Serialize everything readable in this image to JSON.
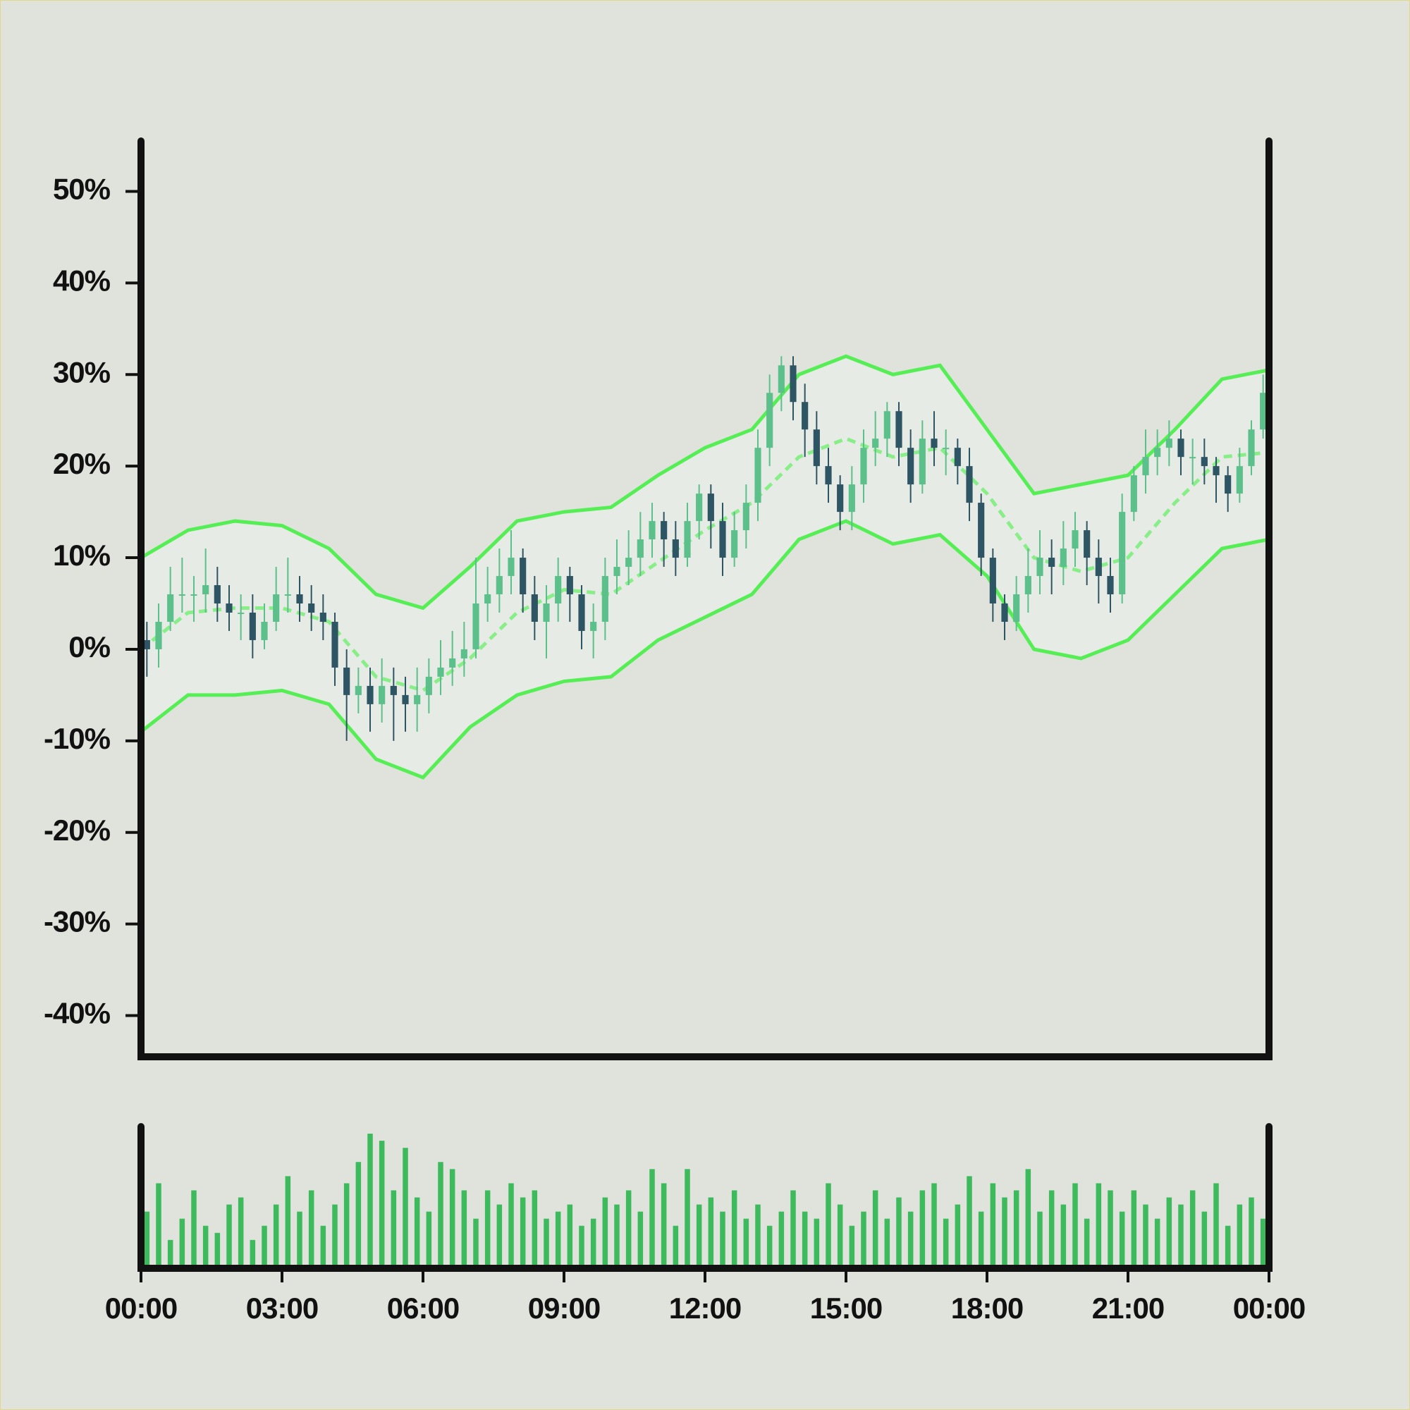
{
  "chart_data": [
    {
      "type": "candlestick",
      "x": [
        0.125,
        0.375,
        0.625,
        0.875,
        1.125,
        1.375,
        1.625,
        1.875,
        2.125,
        2.375,
        2.625,
        2.875,
        3.125,
        3.375,
        3.625,
        3.875,
        4.125,
        4.375,
        4.625,
        4.875,
        5.125,
        5.375,
        5.625,
        5.875,
        6.125,
        6.375,
        6.625,
        6.875,
        7.125,
        7.375,
        7.625,
        7.875,
        8.125,
        8.375,
        8.625,
        8.875,
        9.125,
        9.375,
        9.625,
        9.875,
        10.125,
        10.375,
        10.625,
        10.875,
        11.125,
        11.375,
        11.625,
        11.875,
        12.125,
        12.375,
        12.625,
        12.875,
        13.125,
        13.375,
        13.625,
        13.875,
        14.125,
        14.375,
        14.625,
        14.875,
        15.125,
        15.375,
        15.625,
        15.875,
        16.125,
        16.375,
        16.625,
        16.875,
        17.125,
        17.375,
        17.625,
        17.875,
        18.125,
        18.375,
        18.625,
        18.875,
        19.125,
        19.375,
        19.625,
        19.875,
        20.125,
        20.375,
        20.625,
        20.875,
        21.125,
        21.375,
        21.625,
        21.875,
        22.125,
        22.375,
        22.625,
        22.875,
        23.125,
        23.375,
        23.625,
        23.875
      ],
      "open": [
        1,
        0,
        3,
        6,
        6,
        6,
        7,
        5,
        4,
        4,
        1,
        3,
        6,
        6,
        5,
        4,
        3,
        -2,
        -5,
        -4,
        -6,
        -4,
        -5,
        -6,
        -5,
        -3,
        -2,
        -1,
        0,
        5,
        6,
        8,
        10,
        6,
        3,
        5,
        8,
        6,
        2,
        3,
        8,
        9,
        10,
        12,
        14,
        12,
        10,
        14,
        17,
        14,
        10,
        13,
        16,
        22,
        28,
        31,
        27,
        24,
        20,
        18,
        15,
        18,
        22,
        23,
        26,
        22,
        18,
        23,
        22,
        22,
        20,
        16,
        10,
        5,
        3,
        6,
        8,
        10,
        9,
        11,
        13,
        10,
        8,
        6,
        15,
        19,
        21,
        22,
        23,
        21,
        21,
        20,
        19,
        17,
        20,
        24
      ],
      "high": [
        3,
        5,
        9,
        10,
        8,
        11,
        9,
        7,
        6,
        6,
        5,
        9,
        10,
        8,
        7,
        6,
        4,
        0,
        -2,
        -2,
        -1,
        -2,
        -3,
        -2,
        -1,
        1,
        2,
        3,
        10,
        9,
        11,
        13,
        11,
        8,
        7,
        10,
        9,
        7,
        5,
        10,
        12,
        13,
        15,
        16,
        15,
        14,
        16,
        18,
        18,
        16,
        15,
        18,
        24,
        30,
        32,
        32,
        29,
        26,
        22,
        19,
        20,
        24,
        26,
        27,
        27,
        24,
        25,
        26,
        24,
        23,
        22,
        17,
        11,
        6,
        8,
        11,
        13,
        12,
        14,
        15,
        14,
        12,
        10,
        17,
        20,
        24,
        24,
        25,
        24,
        23,
        23,
        21,
        20,
        22,
        25,
        30
      ],
      "low": [
        -3,
        -2,
        2,
        4,
        3,
        4,
        3,
        2,
        1,
        -1,
        0,
        2,
        4,
        3,
        2,
        1,
        -4,
        -10,
        -7,
        -9,
        -8,
        -10,
        -9,
        -9,
        -7,
        -5,
        -4,
        -3,
        -1,
        3,
        4,
        6,
        4,
        1,
        -1,
        3,
        3,
        0,
        -1,
        1,
        6,
        7,
        8,
        10,
        9,
        8,
        9,
        12,
        11,
        8,
        9,
        11,
        14,
        20,
        26,
        25,
        21,
        18,
        16,
        13,
        13,
        16,
        20,
        21,
        20,
        16,
        17,
        20,
        19,
        18,
        14,
        8,
        3,
        1,
        2,
        4,
        6,
        6,
        7,
        9,
        7,
        5,
        4,
        5,
        14,
        17,
        19,
        20,
        19,
        18,
        18,
        16,
        15,
        16,
        19,
        23
      ],
      "close": [
        0,
        3,
        6,
        6,
        6,
        7,
        5,
        4,
        4,
        1,
        3,
        6,
        6,
        5,
        4,
        3,
        -2,
        -5,
        -4,
        -6,
        -4,
        -5,
        -6,
        -5,
        -3,
        -2,
        -1,
        0,
        5,
        6,
        8,
        10,
        6,
        3,
        5,
        8,
        6,
        2,
        3,
        8,
        9,
        10,
        12,
        14,
        12,
        10,
        14,
        17,
        14,
        10,
        13,
        16,
        22,
        28,
        31,
        27,
        24,
        20,
        18,
        15,
        18,
        22,
        23,
        26,
        22,
        18,
        23,
        22,
        22,
        20,
        16,
        10,
        5,
        3,
        6,
        8,
        10,
        9,
        11,
        13,
        10,
        8,
        6,
        15,
        19,
        21,
        22,
        23,
        21,
        21,
        20,
        19,
        17,
        20,
        24,
        28
      ],
      "up_color": "#5cc08a",
      "down_color": "#2e5563",
      "xlim": [
        0,
        24
      ],
      "ylim": [
        -44.5,
        55.5
      ],
      "yticks": [
        {
          "value": 50,
          "label": "50%"
        },
        {
          "value": 40,
          "label": "40%"
        },
        {
          "value": 30,
          "label": "30%"
        },
        {
          "value": 20,
          "label": "20%"
        },
        {
          "value": 10,
          "label": "10%"
        },
        {
          "value": 0,
          "label": "0%"
        },
        {
          "value": -10,
          "label": "-10%"
        },
        {
          "value": -20,
          "label": "-20%"
        },
        {
          "value": -30,
          "label": "-30%"
        },
        {
          "value": -40,
          "label": "-40%"
        }
      ],
      "bands": {
        "x": [
          0,
          1,
          2,
          3,
          4,
          5,
          6,
          7,
          8,
          9,
          10,
          11,
          12,
          13,
          14,
          15,
          16,
          17,
          18,
          19,
          20,
          21,
          22,
          23,
          24
        ],
        "fill": "#e7ebe5",
        "series": [
          {
            "color": "#55ee55",
            "values": [
              10,
              13,
              14,
              13.5,
              11,
              6,
              4.5,
              9,
              14,
              15,
              15.5,
              19,
              22,
              24,
              30,
              32,
              30,
              31,
              24,
              17,
              18,
              19,
              24,
              29.5,
              30.5
            ]
          },
          {
            "color": "#88ee88",
            "dash": true,
            "values": [
              0,
              4,
              4.5,
              4.5,
              3,
              -3,
              -4.5,
              -1,
              4,
              6.5,
              6,
              9.5,
              13,
              16,
              21,
              23,
              21,
              22,
              17,
              10,
              8.5,
              10,
              16,
              21,
              21.5
            ]
          },
          {
            "color": "#55ee55",
            "values": [
              -9,
              -5,
              -5,
              -4.5,
              -6,
              -12,
              -14,
              -8.5,
              -5,
              -3.5,
              -3,
              1,
              3.5,
              6,
              12,
              14,
              11.5,
              12.5,
              8,
              0,
              -1,
              1,
              6,
              11,
              12
            ]
          }
        ]
      }
    },
    {
      "type": "bar",
      "values": [
        40,
        60,
        20,
        35,
        55,
        30,
        25,
        45,
        50,
        20,
        30,
        45,
        65,
        40,
        55,
        30,
        45,
        60,
        75,
        95,
        90,
        55,
        85,
        50,
        40,
        75,
        70,
        55,
        35,
        55,
        45,
        60,
        50,
        55,
        35,
        40,
        45,
        30,
        35,
        50,
        45,
        55,
        40,
        70,
        60,
        30,
        70,
        45,
        50,
        40,
        55,
        35,
        45,
        30,
        40,
        55,
        40,
        35,
        60,
        45,
        30,
        40,
        55,
        35,
        50,
        40,
        55,
        60,
        35,
        45,
        65,
        40,
        60,
        50,
        55,
        70,
        40,
        55,
        45,
        60,
        35,
        60,
        55,
        40,
        55,
        45,
        35,
        50,
        45,
        55,
        40,
        60,
        30,
        45,
        50,
        35
      ],
      "color": "#3dba5c",
      "ylim": [
        0,
        100
      ],
      "xlim": [
        0,
        24
      ],
      "xticks": [
        {
          "value": 0,
          "label": "00:00"
        },
        {
          "value": 3,
          "label": "03:00"
        },
        {
          "value": 6,
          "label": "06:00"
        },
        {
          "value": 9,
          "label": "09:00"
        },
        {
          "value": 12,
          "label": "12:00"
        },
        {
          "value": 15,
          "label": "15:00"
        },
        {
          "value": 18,
          "label": "18:00"
        },
        {
          "value": 21,
          "label": "21:00"
        },
        {
          "value": 24,
          "label": "00:00"
        }
      ]
    }
  ]
}
